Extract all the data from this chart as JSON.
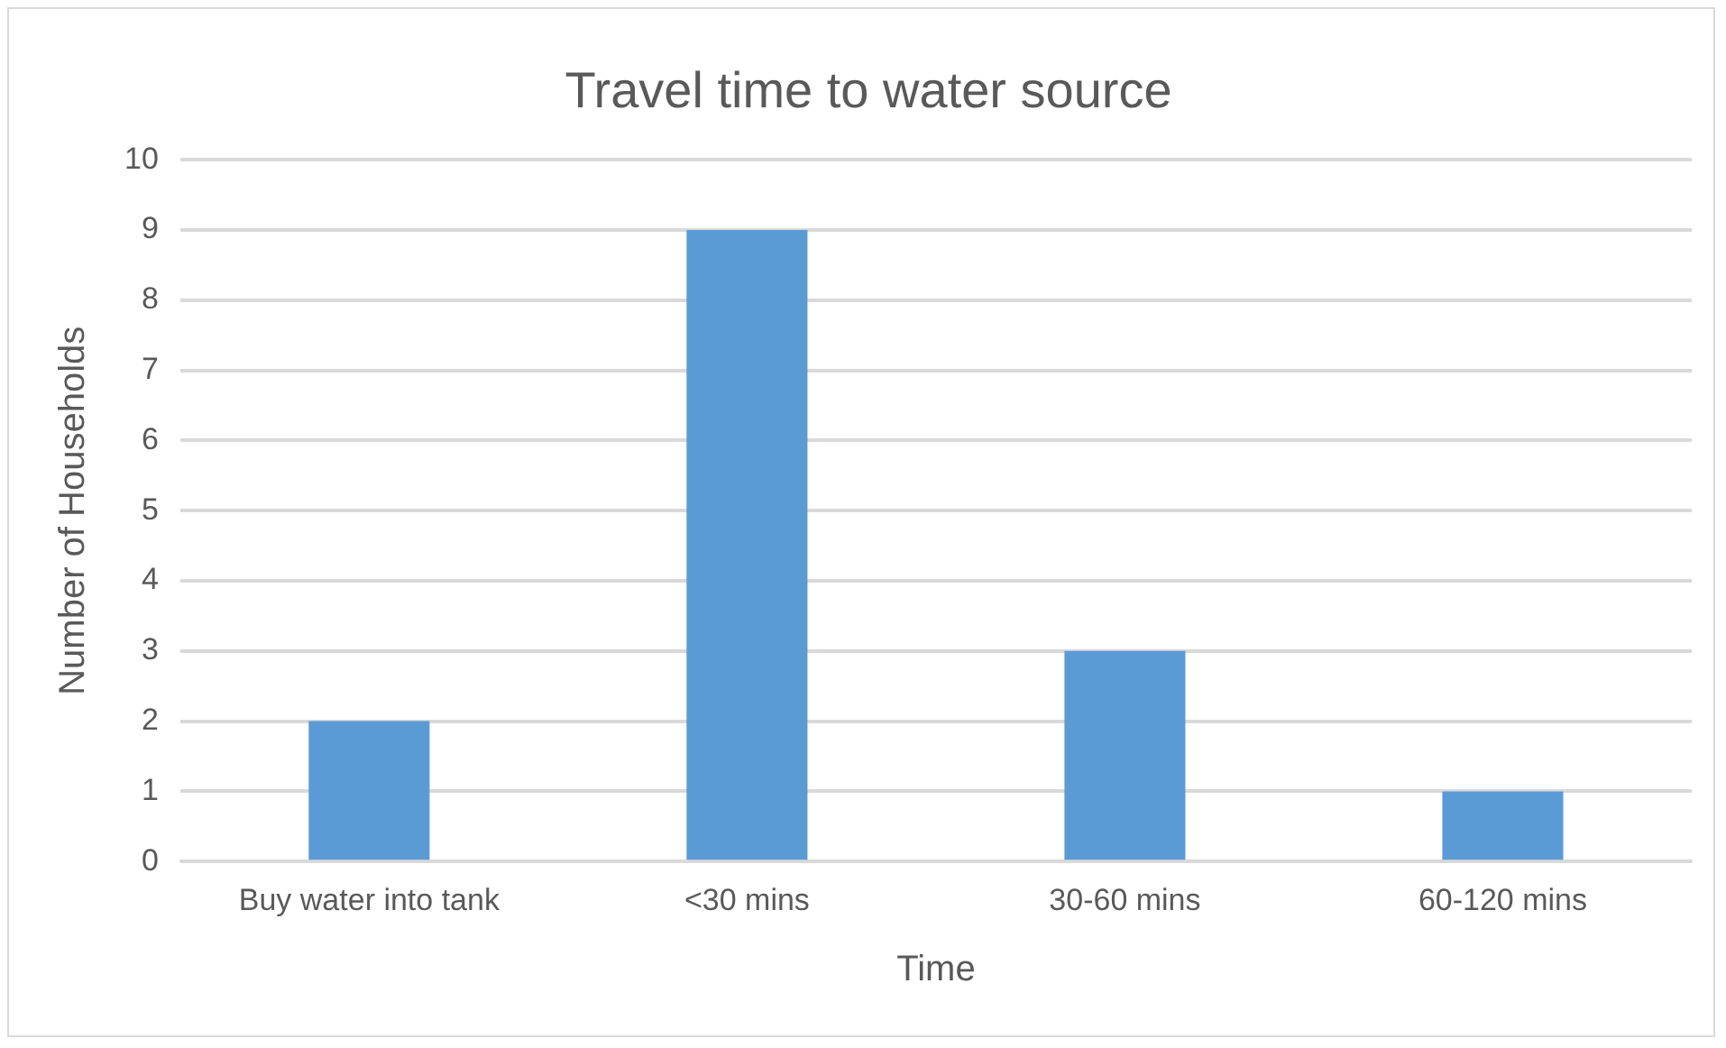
{
  "chart_data": {
    "type": "bar",
    "title": "Travel time to water source",
    "xlabel": "Time",
    "ylabel": "Number of Households",
    "categories": [
      "Buy water into tank",
      "<30 mins",
      "30-60 mins",
      "60-120 mins"
    ],
    "values": [
      2,
      9,
      3,
      1
    ],
    "color": "#5b9bd5",
    "ylim": [
      0,
      10
    ],
    "yticks": [
      0,
      1,
      2,
      3,
      4,
      5,
      6,
      7,
      8,
      9,
      10
    ],
    "grid": "y"
  }
}
